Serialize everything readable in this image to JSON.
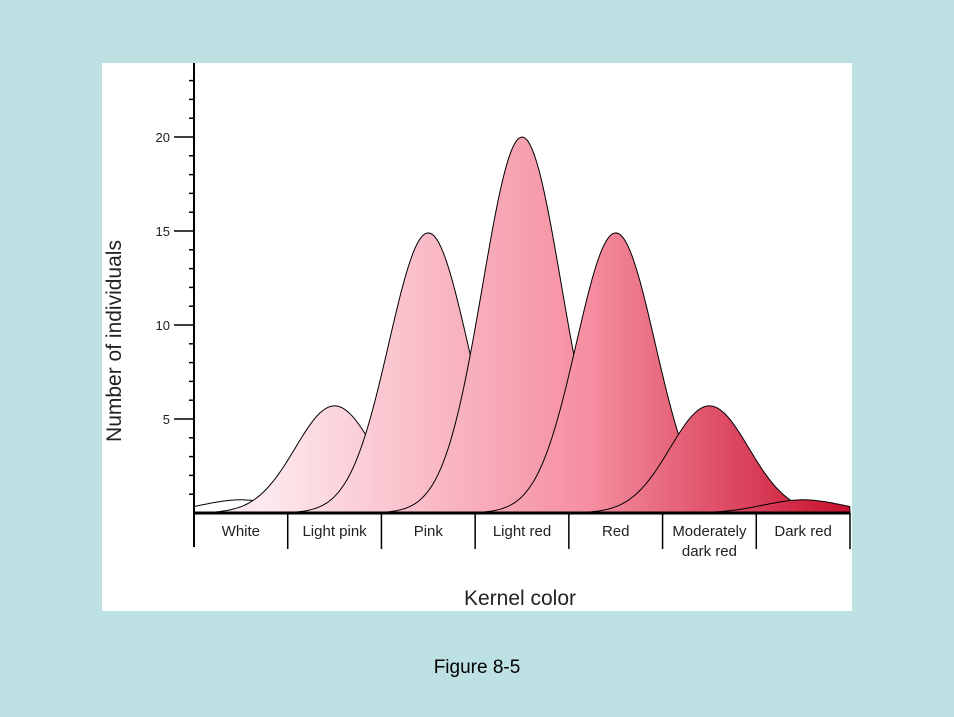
{
  "chart_data": {
    "type": "area",
    "ylabel": "Number of individuals",
    "xlabel": "Kernel color",
    "yticks": [
      5,
      10,
      15,
      20
    ],
    "ylim": [
      0,
      24
    ],
    "categories": [
      [
        "White"
      ],
      [
        "Light pink"
      ],
      [
        "Pink"
      ],
      [
        "Light red"
      ],
      [
        "Red"
      ],
      [
        "Moderately",
        "dark red"
      ],
      [
        "Dark red"
      ]
    ],
    "values": [
      0.7,
      5.7,
      14.9,
      20,
      14.9,
      5.7,
      0.7
    ],
    "colors": {
      "gradient_start": "#fde8ed",
      "gradient_mid": "#f58ea0",
      "gradient_end": "#c8102e"
    }
  },
  "caption": "Figure 8-5"
}
